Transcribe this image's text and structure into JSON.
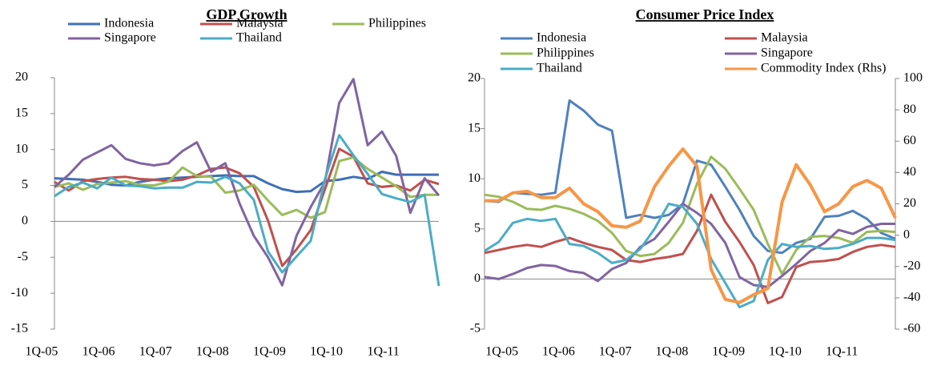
{
  "chart_data": [
    {
      "type": "line",
      "title": "GDP Growth",
      "categories": [
        "1Q-05",
        null,
        null,
        null,
        "1Q-06",
        null,
        null,
        null,
        "1Q-07",
        null,
        null,
        null,
        "1Q-08",
        null,
        null,
        null,
        "1Q-09",
        null,
        null,
        null,
        "1Q-10",
        null,
        null,
        null,
        "1Q-11",
        null,
        null,
        null
      ],
      "ylim": [
        -15,
        20
      ],
      "yticks": [
        -15,
        -10,
        -5,
        0,
        5,
        10,
        15,
        20
      ],
      "series": [
        {
          "name": "Indonesia",
          "color": "#3f6fb6",
          "values": [
            6.0,
            5.9,
            5.8,
            5.5,
            5.1,
            5.0,
            5.5,
            5.8,
            6.0,
            6.1,
            6.2,
            6.3,
            6.4,
            6.3,
            6.3,
            5.3,
            4.5,
            4.1,
            4.2,
            5.6,
            5.8,
            6.2,
            5.9,
            6.9,
            6.5,
            6.5,
            6.5,
            6.5
          ]
        },
        {
          "name": "Malaysia",
          "color": "#c0504d",
          "values": [
            5.5,
            4.3,
            5.6,
            5.9,
            6.1,
            6.2,
            5.9,
            5.8,
            5.6,
            5.8,
            6.4,
            7.3,
            7.5,
            6.7,
            4.8,
            0.1,
            -6.2,
            -3.9,
            -1.2,
            4.5,
            10.1,
            9.0,
            5.3,
            4.8,
            5.0,
            4.3,
            5.8,
            5.2
          ]
        },
        {
          "name": "Philippines",
          "color": "#9bbb59",
          "values": [
            4.8,
            5.3,
            4.4,
            5.2,
            5.4,
            5.6,
            5.1,
            5.0,
            5.5,
            7.5,
            6.3,
            6.2,
            4.0,
            4.3,
            5.1,
            2.9,
            0.9,
            1.6,
            0.5,
            1.3,
            8.4,
            8.9,
            7.3,
            6.1,
            4.9,
            3.4,
            3.7,
            3.7
          ]
        },
        {
          "name": "Singapore",
          "color": "#8064a2",
          "values": [
            4.8,
            6.5,
            8.6,
            9.6,
            10.6,
            8.7,
            8.1,
            7.8,
            8.1,
            9.8,
            11.0,
            6.9,
            8.1,
            2.5,
            -2.0,
            -5.0,
            -8.9,
            -2.0,
            2.0,
            5.5,
            16.5,
            19.8,
            10.6,
            12.5,
            9.1,
            1.2,
            6.0,
            3.6
          ]
        },
        {
          "name": "Thailand",
          "color": "#4bacc6",
          "values": [
            3.5,
            4.8,
            5.4,
            4.6,
            6.1,
            5.0,
            4.9,
            4.6,
            4.7,
            4.7,
            5.5,
            5.4,
            6.2,
            5.3,
            3.0,
            -4.2,
            -7.1,
            -4.9,
            -2.7,
            5.9,
            12.0,
            9.2,
            6.6,
            3.8,
            3.2,
            2.7,
            3.7,
            -9.0
          ]
        }
      ]
    },
    {
      "type": "line",
      "title": "Consumer Price Index",
      "categories": [
        null,
        "1Q-05",
        null,
        null,
        null,
        "1Q-06",
        null,
        null,
        null,
        "1Q-07",
        null,
        null,
        null,
        "1Q-08",
        null,
        null,
        null,
        "1Q-09",
        null,
        null,
        null,
        "1Q-10",
        null,
        null,
        null,
        "1Q-11",
        null,
        null,
        null,
        null
      ],
      "ylim": [
        -5,
        20
      ],
      "yticks": [
        -5,
        0,
        5,
        10,
        15,
        20
      ],
      "y2lim": [
        -60,
        100
      ],
      "y2ticks": [
        -60,
        -40,
        -20,
        0,
        20,
        40,
        60,
        80,
        100
      ],
      "series": [
        {
          "name": "Indonesia",
          "color": "#4f81bd",
          "values": [
            7.8,
            7.7,
            8.6,
            8.5,
            8.4,
            8.6,
            17.8,
            16.8,
            15.4,
            14.8,
            6.1,
            6.4,
            6.1,
            6.4,
            7.5,
            11.8,
            11.4,
            9.2,
            6.9,
            4.3,
            2.8,
            2.6,
            3.6,
            4.0,
            6.2,
            6.3,
            6.8,
            6.0,
            4.6,
            4.0
          ]
        },
        {
          "name": "Malaysia",
          "color": "#c0504d",
          "values": [
            2.6,
            2.9,
            3.2,
            3.4,
            3.2,
            3.7,
            4.1,
            3.6,
            3.2,
            2.9,
            1.9,
            1.7,
            2.0,
            2.2,
            2.5,
            4.8,
            8.4,
            5.7,
            3.7,
            1.4,
            -2.4,
            -1.8,
            1.2,
            1.7,
            1.8,
            2.0,
            2.7,
            3.2,
            3.4,
            3.2
          ]
        },
        {
          "name": "Philippines",
          "color": "#9bbb59",
          "values": [
            8.4,
            8.2,
            7.7,
            7.0,
            6.9,
            7.3,
            7.0,
            6.5,
            5.8,
            4.6,
            2.8,
            2.3,
            2.5,
            3.6,
            5.6,
            9.5,
            12.2,
            11.0,
            9.0,
            6.9,
            3.5,
            0.5,
            2.9,
            4.2,
            4.3,
            4.1,
            3.6,
            4.7,
            4.8,
            4.7
          ]
        },
        {
          "name": "Singapore",
          "color": "#8064a2",
          "values": [
            0.2,
            0.0,
            0.5,
            1.1,
            1.4,
            1.3,
            0.8,
            0.6,
            -0.2,
            1.0,
            1.6,
            3.2,
            4.0,
            5.7,
            7.5,
            6.6,
            5.5,
            3.6,
            0.2,
            -0.6,
            -0.8,
            0.3,
            1.5,
            2.8,
            3.6,
            4.9,
            4.5,
            5.2,
            5.5,
            5.5
          ]
        },
        {
          "name": "Thailand",
          "color": "#4bacc6",
          "values": [
            2.8,
            3.7,
            5.6,
            6.0,
            5.8,
            6.0,
            3.5,
            3.3,
            2.6,
            1.6,
            1.9,
            3.0,
            5.0,
            7.5,
            7.2,
            5.5,
            2.0,
            -0.4,
            -2.8,
            -2.2,
            1.9,
            3.5,
            3.2,
            3.3,
            3.0,
            3.1,
            3.5,
            4.1,
            4.1,
            3.9
          ]
        },
        {
          "name": "Commodity Index (Rhs)",
          "color": "#f79646",
          "axis": "y2",
          "values": [
            22,
            22,
            27,
            28,
            24,
            24,
            30,
            20,
            15,
            6,
            5,
            9,
            31,
            44,
            55,
            44,
            -22,
            -41,
            -43,
            -38,
            -34,
            21,
            45,
            32,
            15,
            20,
            31,
            35,
            30,
            11
          ]
        }
      ]
    }
  ]
}
